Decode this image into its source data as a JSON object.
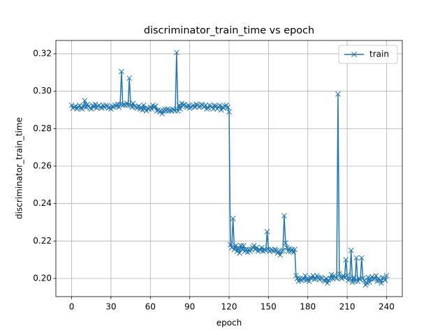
{
  "chart_data": {
    "type": "line",
    "title": "discriminator_train_time vs epoch",
    "x_label": "epoch",
    "y_label": "discriminator_train_time",
    "x": [
      0,
      1,
      2,
      3,
      4,
      5,
      6,
      7,
      8,
      9,
      10,
      11,
      12,
      13,
      14,
      15,
      16,
      17,
      18,
      19,
      20,
      21,
      22,
      23,
      24,
      25,
      26,
      27,
      28,
      29,
      30,
      31,
      32,
      33,
      34,
      35,
      36,
      37,
      38,
      39,
      40,
      41,
      42,
      43,
      44,
      45,
      46,
      47,
      48,
      49,
      50,
      51,
      52,
      53,
      54,
      55,
      56,
      57,
      58,
      59,
      60,
      61,
      62,
      63,
      64,
      65,
      66,
      67,
      68,
      69,
      70,
      71,
      72,
      73,
      74,
      75,
      76,
      77,
      78,
      79,
      80,
      81,
      82,
      83,
      84,
      85,
      86,
      87,
      88,
      89,
      90,
      91,
      92,
      93,
      94,
      95,
      96,
      97,
      98,
      99,
      100,
      101,
      102,
      103,
      104,
      105,
      106,
      107,
      108,
      109,
      110,
      111,
      112,
      113,
      114,
      115,
      116,
      117,
      118,
      119,
      120,
      121,
      122,
      123,
      124,
      125,
      126,
      127,
      128,
      129,
      130,
      131,
      132,
      133,
      134,
      135,
      136,
      137,
      138,
      139,
      140,
      141,
      142,
      143,
      144,
      145,
      146,
      147,
      148,
      149,
      150,
      151,
      152,
      153,
      154,
      155,
      156,
      157,
      158,
      159,
      160,
      161,
      162,
      163,
      164,
      165,
      166,
      167,
      168,
      169,
      170,
      171,
      172,
      173,
      174,
      175,
      176,
      177,
      178,
      179,
      180,
      181,
      182,
      183,
      184,
      185,
      186,
      187,
      188,
      189,
      190,
      191,
      192,
      193,
      194,
      195,
      196,
      197,
      198,
      199,
      200,
      201,
      202,
      203,
      204,
      205,
      206,
      207,
      208,
      209,
      210,
      211,
      212,
      213,
      214,
      215,
      216,
      217,
      218,
      219,
      220,
      221,
      222,
      223,
      224,
      225,
      226,
      227,
      228,
      229,
      230,
      231,
      232,
      233,
      234,
      235,
      236,
      237,
      238,
      239,
      240
    ],
    "series": [
      {
        "name": "train",
        "color": "#1f77b4",
        "values": [
          0.2925,
          0.291,
          0.2915,
          0.292,
          0.2905,
          0.2915,
          0.2925,
          0.291,
          0.2905,
          0.292,
          0.295,
          0.2915,
          0.293,
          0.292,
          0.291,
          0.2905,
          0.2925,
          0.2915,
          0.293,
          0.291,
          0.292,
          0.2925,
          0.2915,
          0.291,
          0.2925,
          0.2915,
          0.2925,
          0.292,
          0.291,
          0.2915,
          0.2905,
          0.292,
          0.2915,
          0.2925,
          0.292,
          0.293,
          0.2915,
          0.293,
          0.3105,
          0.2925,
          0.293,
          0.2925,
          0.2935,
          0.2925,
          0.307,
          0.2925,
          0.2915,
          0.2935,
          0.292,
          0.2915,
          0.291,
          0.292,
          0.2905,
          0.2915,
          0.29,
          0.2925,
          0.2905,
          0.2895,
          0.291,
          0.2905,
          0.2915,
          0.2905,
          0.2925,
          0.2915,
          0.292,
          0.2895,
          0.29,
          0.289,
          0.2895,
          0.288,
          0.2895,
          0.2905,
          0.2895,
          0.2905,
          0.2895,
          0.29,
          0.2895,
          0.2905,
          0.29,
          0.2895,
          0.3207,
          0.2895,
          0.2925,
          0.2905,
          0.2935,
          0.2925,
          0.293,
          0.292,
          0.2915,
          0.2925,
          0.291,
          0.2915,
          0.292,
          0.2925,
          0.2915,
          0.293,
          0.2925,
          0.2915,
          0.292,
          0.293,
          0.2925,
          0.2915,
          0.2925,
          0.2905,
          0.291,
          0.2925,
          0.292,
          0.2915,
          0.2905,
          0.2925,
          0.292,
          0.2905,
          0.2915,
          0.2925,
          0.29,
          0.2915,
          0.291,
          0.292,
          0.2925,
          0.2915,
          0.289,
          0.218,
          0.2165,
          0.232,
          0.2155,
          0.2175,
          0.2145,
          0.2165,
          0.2135,
          0.2175,
          0.2155,
          0.2175,
          0.2145,
          0.2155,
          0.214,
          0.2155,
          0.2145,
          0.2155,
          0.2165,
          0.2175,
          0.2155,
          0.2165,
          0.2145,
          0.2155,
          0.215,
          0.2165,
          0.2145,
          0.2155,
          0.215,
          0.225,
          0.2155,
          0.2145,
          0.2155,
          0.215,
          0.2145,
          0.2155,
          0.215,
          0.2135,
          0.2145,
          0.2125,
          0.2145,
          0.215,
          0.2335,
          0.219,
          0.2165,
          0.2145,
          0.216,
          0.2145,
          0.2155,
          0.214,
          0.2155,
          0.2015,
          0.2,
          0.1985,
          0.2,
          0.199,
          0.2,
          0.1995,
          0.2015,
          0.199,
          0.2,
          0.1985,
          0.2005,
          0.2,
          0.2015,
          0.1995,
          0.2,
          0.2015,
          0.2005,
          0.1995,
          0.2005,
          0.2,
          0.199,
          0.1985,
          0.2,
          0.1975,
          0.199,
          0.2,
          0.202,
          0.2,
          0.2015,
          0.2005,
          0.2,
          0.2985,
          0.2025,
          0.2005,
          0.2,
          0.2015,
          0.2005,
          0.21,
          0.2015,
          0.199,
          0.2,
          0.215,
          0.198,
          0.2005,
          0.1985,
          0.211,
          0.1985,
          0.2,
          0.1995,
          0.211,
          0.2,
          0.199,
          0.1965,
          0.1975,
          0.2005,
          0.198,
          0.2,
          0.201,
          0.1995,
          0.2,
          0.2015,
          0.1985,
          0.2,
          0.199,
          0.1975,
          0.2005,
          0.2,
          0.199,
          0.2015
        ]
      }
    ],
    "xlim": [
      -12,
      252
    ],
    "xticks": [
      0,
      30,
      60,
      90,
      120,
      150,
      180,
      210,
      240
    ],
    "ylim": [
      0.1903,
      0.3271
    ],
    "yticks": [
      {
        "value": 0.2,
        "label": "0.20"
      },
      0.22,
      0.24,
      0.26,
      0.28,
      {
        "value": 0.3,
        "label": "0.30"
      },
      0.32
    ],
    "grid": true,
    "legend": "upper right"
  }
}
